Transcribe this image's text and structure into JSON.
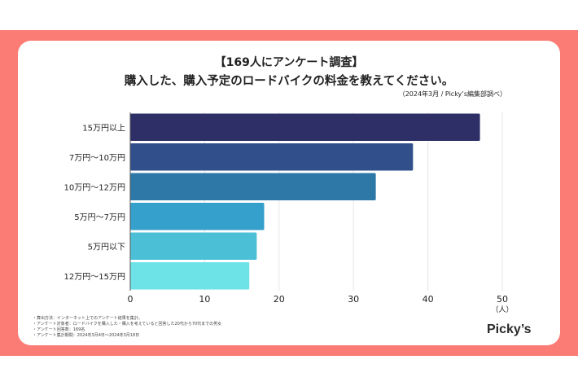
{
  "title_line1": "【169人にアンケート調査】",
  "title_line2": "購入した、購入予定のロードバイクの料金を教えてください。",
  "source": "（2024年3月 / Picky’s編集部調べ）",
  "notes": [
    "・算出方法：インターネット上でのアンケート結果を集計。",
    "・アンケート対象者：ロードバイクを購入した・購入を考えていると回答した20代から70代までの男女",
    "・アンケート回答数：169名",
    "・アンケート集計期間：2024年3月4日〜2024年3月18日"
  ],
  "logo": "Picky’s",
  "colors": {
    "background": "#fb7b75",
    "bars": [
      "#2e2f66",
      "#31508b",
      "#2e78a8",
      "#35a0cc",
      "#4bbfd5",
      "#6de2e7"
    ]
  },
  "chart_data": {
    "type": "bar",
    "orientation": "horizontal",
    "categories": [
      "15万円以上",
      "7万円〜10万円",
      "10万円〜12万円",
      "5万円〜7万円",
      "5万円以下",
      "12万円〜15万円"
    ],
    "values": [
      47,
      38,
      33,
      18,
      17,
      16
    ],
    "xlim": [
      0,
      50
    ],
    "xticks": [
      0,
      10,
      20,
      30,
      40,
      50
    ],
    "xlabel": "（人）",
    "grid": true
  }
}
